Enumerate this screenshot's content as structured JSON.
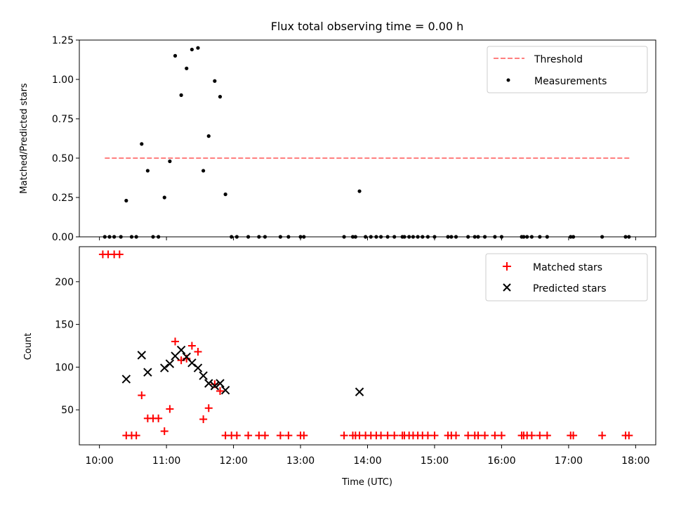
{
  "title": "Flux total observing time = 0.00 h",
  "chart_data": [
    {
      "type": "scatter",
      "name": "ratio-panel",
      "ylabel": "Matched/Predicted stars",
      "xlabel": "",
      "xlim_hours": [
        9.7,
        18.3
      ],
      "ylim": [
        0,
        1.25
      ],
      "yticks": [
        0,
        0.25,
        0.5,
        0.75,
        1.0,
        1.25
      ],
      "ytick_labels": [
        "0.00",
        "0.25",
        "0.50",
        "0.75",
        "1.00",
        "1.25"
      ],
      "legend_position": "top-right",
      "threshold": {
        "name": "Threshold",
        "value": 0.5,
        "x_start": 10.08,
        "x_end": 17.92,
        "color": "#ff7f7f",
        "style": "dashed"
      },
      "series": [
        {
          "name": "Measurements",
          "color": "#000000",
          "marker": "dot",
          "points": [
            [
              10.08,
              0
            ],
            [
              10.15,
              0
            ],
            [
              10.22,
              0
            ],
            [
              10.32,
              0
            ],
            [
              10.4,
              0.23
            ],
            [
              10.48,
              0
            ],
            [
              10.55,
              0
            ],
            [
              10.63,
              0.59
            ],
            [
              10.72,
              0.42
            ],
            [
              10.8,
              0
            ],
            [
              10.88,
              0
            ],
            [
              10.97,
              0.25
            ],
            [
              11.05,
              0.48
            ],
            [
              11.13,
              1.15
            ],
            [
              11.22,
              0.9
            ],
            [
              11.3,
              1.07
            ],
            [
              11.38,
              1.19
            ],
            [
              11.47,
              1.2
            ],
            [
              11.55,
              0.42
            ],
            [
              11.63,
              0.64
            ],
            [
              11.72,
              0.99
            ],
            [
              11.8,
              0.89
            ],
            [
              11.88,
              0.27
            ],
            [
              11.97,
              0
            ],
            [
              12.05,
              0
            ],
            [
              12.22,
              0
            ],
            [
              12.38,
              0
            ],
            [
              12.47,
              0
            ],
            [
              12.7,
              0
            ],
            [
              12.82,
              0
            ],
            [
              13.0,
              0
            ],
            [
              13.05,
              0
            ],
            [
              13.65,
              0
            ],
            [
              13.78,
              0
            ],
            [
              13.82,
              0
            ],
            [
              13.88,
              0.29
            ],
            [
              13.97,
              0
            ],
            [
              14.05,
              0
            ],
            [
              14.13,
              0
            ],
            [
              14.2,
              0
            ],
            [
              14.3,
              0
            ],
            [
              14.4,
              0
            ],
            [
              14.52,
              0
            ],
            [
              14.55,
              0
            ],
            [
              14.62,
              0
            ],
            [
              14.68,
              0
            ],
            [
              14.75,
              0
            ],
            [
              14.82,
              0
            ],
            [
              14.9,
              0
            ],
            [
              15.0,
              0
            ],
            [
              15.2,
              0
            ],
            [
              15.25,
              0
            ],
            [
              15.32,
              0
            ],
            [
              15.5,
              0
            ],
            [
              15.6,
              0
            ],
            [
              15.65,
              0
            ],
            [
              15.75,
              0
            ],
            [
              15.9,
              0
            ],
            [
              16.0,
              0
            ],
            [
              16.3,
              0
            ],
            [
              16.33,
              0
            ],
            [
              16.38,
              0
            ],
            [
              16.45,
              0
            ],
            [
              16.57,
              0
            ],
            [
              16.68,
              0
            ],
            [
              17.03,
              0
            ],
            [
              17.07,
              0
            ],
            [
              17.5,
              0
            ],
            [
              17.85,
              0
            ],
            [
              17.9,
              0
            ]
          ]
        }
      ]
    },
    {
      "type": "scatter",
      "name": "count-panel",
      "ylabel": "Count",
      "xlabel": "Time (UTC)",
      "xlim_hours": [
        9.7,
        18.3
      ],
      "ylim": [
        9,
        241
      ],
      "xticks_hours": [
        10,
        11,
        12,
        13,
        14,
        15,
        16,
        17,
        18
      ],
      "xtick_labels": [
        "10:00",
        "11:00",
        "12:00",
        "13:00",
        "14:00",
        "15:00",
        "16:00",
        "17:00",
        "18:00"
      ],
      "yticks": [
        50,
        100,
        150,
        200
      ],
      "ytick_labels": [
        "50",
        "100",
        "150",
        "200"
      ],
      "legend_position": "top-right",
      "series": [
        {
          "name": "Matched stars",
          "color": "#ff0000",
          "marker": "plus",
          "points": [
            [
              10.05,
              232
            ],
            [
              10.13,
              232
            ],
            [
              10.22,
              232
            ],
            [
              10.3,
              232
            ],
            [
              10.4,
              20
            ],
            [
              10.48,
              20
            ],
            [
              10.55,
              20
            ],
            [
              10.63,
              67
            ],
            [
              10.72,
              40
            ],
            [
              10.8,
              40
            ],
            [
              10.88,
              40
            ],
            [
              10.97,
              25
            ],
            [
              11.05,
              51
            ],
            [
              11.13,
              130
            ],
            [
              11.22,
              108
            ],
            [
              11.3,
              110
            ],
            [
              11.38,
              125
            ],
            [
              11.47,
              118
            ],
            [
              11.55,
              39
            ],
            [
              11.63,
              52
            ],
            [
              11.72,
              80
            ],
            [
              11.8,
              72
            ],
            [
              11.88,
              20
            ],
            [
              11.97,
              20
            ],
            [
              12.05,
              20
            ],
            [
              12.22,
              20
            ],
            [
              12.38,
              20
            ],
            [
              12.47,
              20
            ],
            [
              12.7,
              20
            ],
            [
              12.82,
              20
            ],
            [
              13.0,
              20
            ],
            [
              13.05,
              20
            ],
            [
              13.65,
              20
            ],
            [
              13.78,
              20
            ],
            [
              13.82,
              20
            ],
            [
              13.88,
              20
            ],
            [
              13.97,
              20
            ],
            [
              14.05,
              20
            ],
            [
              14.13,
              20
            ],
            [
              14.2,
              20
            ],
            [
              14.3,
              20
            ],
            [
              14.4,
              20
            ],
            [
              14.52,
              20
            ],
            [
              14.55,
              20
            ],
            [
              14.62,
              20
            ],
            [
              14.68,
              20
            ],
            [
              14.75,
              20
            ],
            [
              14.82,
              20
            ],
            [
              14.9,
              20
            ],
            [
              15.0,
              20
            ],
            [
              15.2,
              20
            ],
            [
              15.25,
              20
            ],
            [
              15.32,
              20
            ],
            [
              15.5,
              20
            ],
            [
              15.6,
              20
            ],
            [
              15.65,
              20
            ],
            [
              15.75,
              20
            ],
            [
              15.9,
              20
            ],
            [
              16.0,
              20
            ],
            [
              16.3,
              20
            ],
            [
              16.33,
              20
            ],
            [
              16.38,
              20
            ],
            [
              16.45,
              20
            ],
            [
              16.57,
              20
            ],
            [
              16.68,
              20
            ],
            [
              17.03,
              20
            ],
            [
              17.07,
              20
            ],
            [
              17.5,
              20
            ],
            [
              17.85,
              20
            ],
            [
              17.9,
              20
            ]
          ]
        },
        {
          "name": "Predicted stars",
          "color": "#000000",
          "marker": "x",
          "points": [
            [
              10.4,
              86
            ],
            [
              10.63,
              114
            ],
            [
              10.72,
              94
            ],
            [
              10.97,
              99
            ],
            [
              11.05,
              104
            ],
            [
              11.13,
              113
            ],
            [
              11.22,
              120
            ],
            [
              11.3,
              112
            ],
            [
              11.38,
              105
            ],
            [
              11.47,
              99
            ],
            [
              11.55,
              90
            ],
            [
              11.63,
              81
            ],
            [
              11.72,
              78
            ],
            [
              11.8,
              81
            ],
            [
              11.88,
              73
            ],
            [
              13.88,
              71
            ]
          ]
        }
      ]
    }
  ]
}
